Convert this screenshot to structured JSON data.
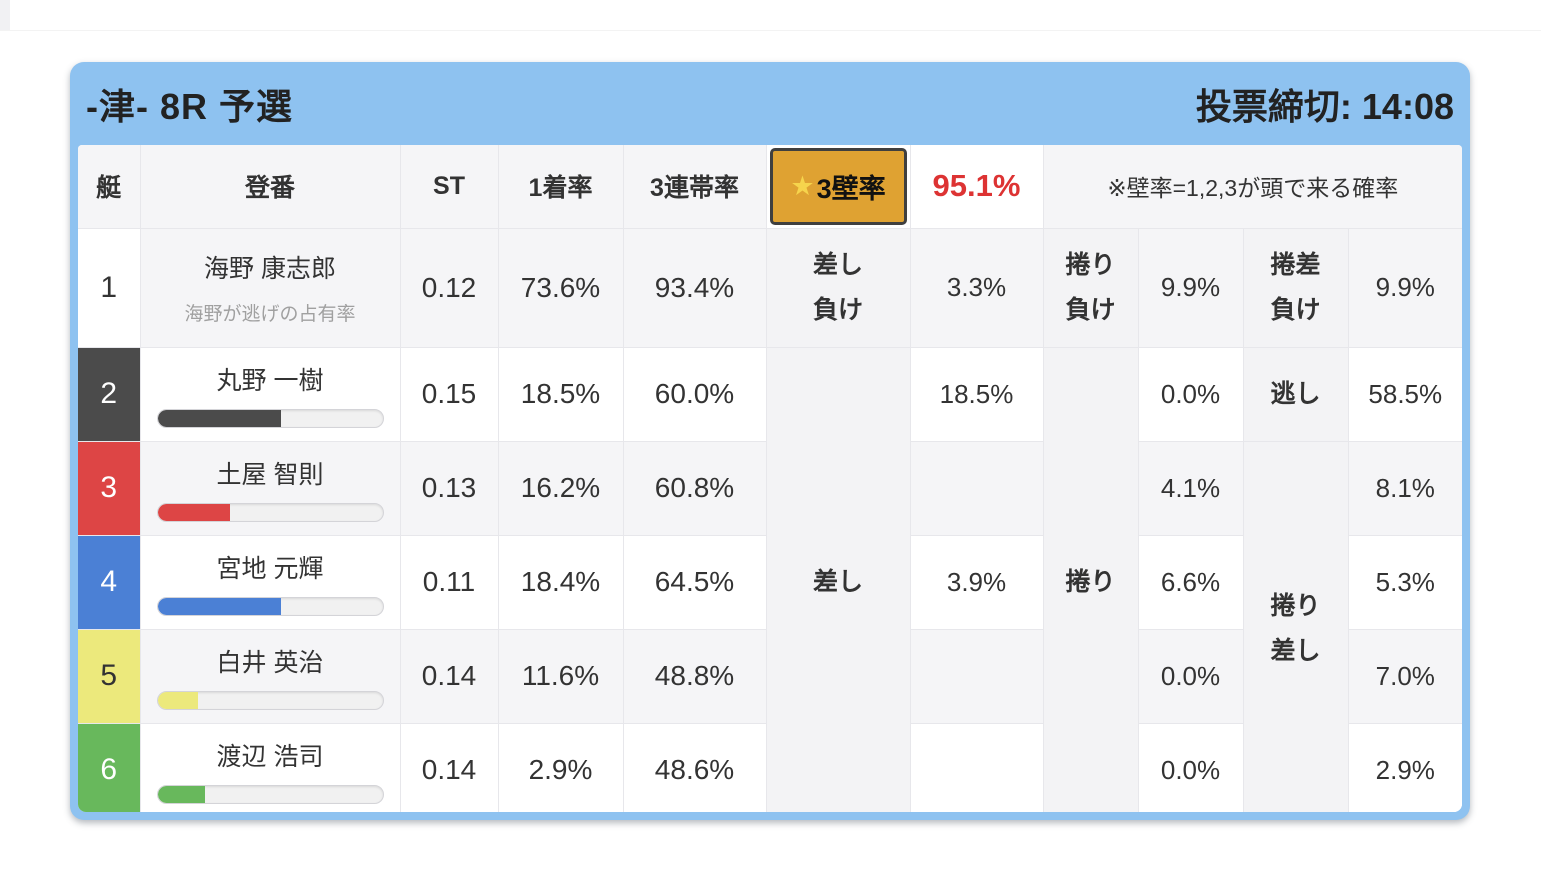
{
  "header": {
    "title": "-津- 8R 予選",
    "deadline": "投票締切: 14:08"
  },
  "columns": {
    "boat": "艇",
    "racer": "登番",
    "st": "ST",
    "win1": "1着率",
    "top3": "3連帯率"
  },
  "wall": {
    "star": "★",
    "button_label": "3壁率",
    "value": "95.1%",
    "note": "※壁率=1,2,3が頭で来る確率"
  },
  "merged": {
    "sashi": "差し",
    "makuri": "捲り",
    "makurizashi": "捲り\n差し"
  },
  "colors": {
    "card_blue": "#8ec2f0",
    "stripe_gray": "#f5f5f7",
    "label_gray": "#f3f3f5",
    "wall_orange": "#dfa232",
    "wall_border": "#3f3f3f",
    "star_yellow": "#f6d44c",
    "alert_red": "#dd3333"
  },
  "rows": [
    {
      "num": "1",
      "badge_bg": "#ffffff",
      "badge_fg": "#333333",
      "name": "海野 康志郎",
      "subtitle": "海野が逃げの占有率",
      "st": "0.12",
      "win1": "73.6%",
      "top3": "93.4%",
      "label_a": "差し\n負け",
      "val_a": "3.3%",
      "label_b": "捲り\n負け",
      "val_b": "9.9%",
      "label_c": "捲差\n負け",
      "val_c": "9.9%"
    },
    {
      "num": "2",
      "badge_bg": "#4b4b4b",
      "badge_fg": "#ffffff",
      "name": "丸野 一樹",
      "bar_percent": 55,
      "bar_color": "#4b4b4b",
      "st": "0.15",
      "win1": "18.5%",
      "top3": "60.0%",
      "val_a": "18.5%",
      "val_b": "0.0%",
      "label_c": "逃し",
      "val_c": "58.5%"
    },
    {
      "num": "3",
      "badge_bg": "#dd4545",
      "badge_fg": "#ffffff",
      "name": "土屋 智則",
      "bar_percent": 32,
      "bar_color": "#dd4545",
      "st": "0.13",
      "win1": "16.2%",
      "top3": "60.8%",
      "val_a": "",
      "val_b": "4.1%",
      "val_c": "8.1%"
    },
    {
      "num": "4",
      "badge_bg": "#4b80d5",
      "badge_fg": "#ffffff",
      "name": "宮地 元輝",
      "bar_percent": 55,
      "bar_color": "#4b80d5",
      "st": "0.11",
      "win1": "18.4%",
      "top3": "64.5%",
      "val_a": "3.9%",
      "val_b": "6.6%",
      "val_c": "5.3%"
    },
    {
      "num": "5",
      "badge_bg": "#ece97c",
      "badge_fg": "#333333",
      "name": "白井 英治",
      "bar_percent": 18,
      "bar_color": "#ece97c",
      "st": "0.14",
      "win1": "11.6%",
      "top3": "48.8%",
      "val_a": "",
      "val_b": "0.0%",
      "val_c": "7.0%"
    },
    {
      "num": "6",
      "badge_bg": "#68b85c",
      "badge_fg": "#ffffff",
      "name": "渡辺 浩司",
      "bar_percent": 21,
      "bar_color": "#68b85c",
      "st": "0.14",
      "win1": "2.9%",
      "top3": "48.6%",
      "val_a": "",
      "val_b": "0.0%",
      "val_c": "2.9%"
    }
  ]
}
